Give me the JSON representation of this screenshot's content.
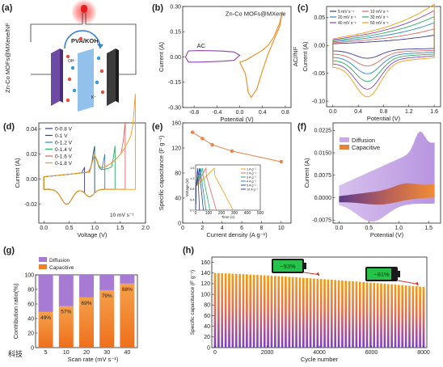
{
  "chart_data": [
    {
      "panel": "(a)",
      "type": "diagram",
      "side_label": "Zn-Co MOFs@MXene/NF",
      "electrolyte_label": "PVA/KOH",
      "ion_labels": [
        "OH⁻",
        "K⁺"
      ]
    },
    {
      "panel": "(b)",
      "type": "line",
      "xlabel": "Potential (V)",
      "ylabel": "Current (A)",
      "right_label": "AC//NF",
      "xlim": [
        -1.0,
        0.9
      ],
      "ylim": [
        -0.3,
        0.3
      ],
      "xticks": [
        "-0.8",
        "-0.4",
        "0.0",
        "0.4",
        "0.8"
      ],
      "yticks": [
        "-0.30",
        "-0.15",
        "0.00",
        "0.15",
        "0.30"
      ],
      "series": [
        {
          "name": "AC",
          "color": "#8e44ad",
          "x": [
            -0.9,
            -0.7,
            -0.5,
            -0.3,
            -0.1,
            0.0,
            -0.1,
            -0.3,
            -0.5,
            -0.7,
            -0.9,
            -0.95,
            -0.9
          ],
          "y": [
            -0.03,
            -0.03,
            -0.028,
            -0.025,
            -0.02,
            0.01,
            0.03,
            0.035,
            0.037,
            0.038,
            0.036,
            0.0,
            -0.03
          ]
        },
        {
          "name": "Zn-Co MOFs@MXene",
          "color": "#f08a1c",
          "x": [
            0.0,
            0.1,
            0.2,
            0.3,
            0.4,
            0.5,
            0.6,
            0.7,
            0.75,
            0.7,
            0.6,
            0.5,
            0.4,
            0.3,
            0.2,
            0.15,
            0.1,
            0.0
          ],
          "y": [
            -0.03,
            -0.02,
            0.0,
            0.02,
            0.04,
            0.07,
            0.12,
            0.2,
            0.27,
            0.18,
            0.1,
            0.02,
            -0.08,
            -0.19,
            -0.24,
            -0.21,
            -0.1,
            -0.03
          ]
        }
      ]
    },
    {
      "panel": "(c)",
      "type": "line",
      "xlabel": "Potential (V)",
      "ylabel": "Current (A)",
      "xlim": [
        -0.1,
        1.7
      ],
      "ylim": [
        -0.11,
        0.07
      ],
      "xticks": [
        "0.0",
        "0.4",
        "0.8",
        "1.2",
        "1.6"
      ],
      "yticks": [
        "-0.10",
        "-0.05",
        "0.00",
        "0.05"
      ],
      "series": [
        {
          "name": "5 mV s⁻¹",
          "color": "#3b3b98",
          "scale": 0.25
        },
        {
          "name": "10 mV s⁻¹",
          "color": "#e06666",
          "scale": 0.4
        },
        {
          "name": "20 mV s⁻¹",
          "color": "#2e86c1",
          "scale": 0.55
        },
        {
          "name": "30 mV s⁻¹",
          "color": "#27ae60",
          "scale": 0.7
        },
        {
          "name": "40 mV s⁻¹",
          "color": "#8e44ad",
          "scale": 0.85
        },
        {
          "name": "50 mV s⁻¹",
          "color": "#f39c12",
          "scale": 1.0
        }
      ]
    },
    {
      "panel": "(d)",
      "type": "line",
      "xlabel": "Voltage (V)",
      "ylabel": "Current (A)",
      "annotation": "10 mV s⁻¹",
      "xlim": [
        -0.1,
        2.0
      ],
      "ylim": [
        -0.035,
        0.045
      ],
      "xticks": [
        "0.0",
        "0.5",
        "1.0",
        "1.5",
        "2.0"
      ],
      "yticks": [
        "-0.02",
        "0.00",
        "0.02",
        "0.04"
      ],
      "series": [
        {
          "name": "0-0.8 V",
          "color": "#3b3b98",
          "vmax": 0.8
        },
        {
          "name": "0-1 V",
          "color": "#1a5276",
          "vmax": 1.0
        },
        {
          "name": "0-1.2 V",
          "color": "#2e86c1",
          "vmax": 1.2
        },
        {
          "name": "0-1.4 V",
          "color": "#27ae60",
          "vmax": 1.4
        },
        {
          "name": "0-1.6 V",
          "color": "#e06666",
          "vmax": 1.6
        },
        {
          "name": "0-1.8 V",
          "color": "#f39c12",
          "vmax": 1.8
        }
      ]
    },
    {
      "panel": "(e)",
      "type": "line",
      "xlabel": "Current density (A g⁻¹)",
      "ylabel": "Specific capacitance (F g⁻¹)",
      "xlim": [
        0,
        11
      ],
      "ylim": [
        0,
        160
      ],
      "xticks": [
        "0",
        "2",
        "4",
        "6",
        "8",
        "10"
      ],
      "yticks": [
        "0",
        "40",
        "80",
        "120",
        "160"
      ],
      "series": [
        {
          "name": "capacitance",
          "color": "#e8834a",
          "x": [
            1,
            2,
            3,
            5,
            10
          ],
          "y": [
            145,
            135,
            125,
            115,
            98
          ]
        }
      ],
      "inset": {
        "xlabel": "Time (s)",
        "ylabel": "Voltage (V)",
        "xticks": [
          "0",
          "100",
          "200",
          "300",
          "400",
          "500"
        ],
        "yticks": [
          "0.0",
          "0.4",
          "0.8",
          "1.2",
          "1.6"
        ],
        "legend": [
          {
            "name": "1 A g⁻¹",
            "color": "#f39c12"
          },
          {
            "name": "2 A g⁻¹",
            "color": "#e06666"
          },
          {
            "name": "3 A g⁻¹",
            "color": "#27ae60"
          },
          {
            "name": "4 A g⁻¹",
            "color": "#2e86c1"
          },
          {
            "name": "5 A g⁻¹",
            "color": "#1a5276"
          },
          {
            "name": "10 A g⁻¹",
            "color": "#3b3b98"
          }
        ]
      }
    },
    {
      "panel": "(f)",
      "type": "area",
      "xlabel": "Potential (V)",
      "ylabel": "Current (A)",
      "xlim": [
        -0.1,
        1.7
      ],
      "ylim": [
        -0.0085,
        0.025
      ],
      "xticks": [
        "0.0",
        "0.5",
        "1.0",
        "1.5"
      ],
      "yticks": [
        "-0.0075",
        "0.0000",
        "0.0075",
        "0.0150",
        "0.0225"
      ],
      "legend": [
        {
          "name": "Diffusion",
          "color": "#c9a9e6"
        },
        {
          "name": "Capacitive",
          "color": "#e6833a"
        }
      ]
    },
    {
      "panel": "(g)",
      "type": "bar",
      "xlabel": "Scan rate (mV s⁻¹)",
      "ylabel": "Contribution ratio(%)",
      "categories": [
        "5",
        "10",
        "20",
        "30",
        "40"
      ],
      "ylim": [
        0,
        100
      ],
      "yticks": [
        "0",
        "20",
        "40",
        "60",
        "80",
        "100"
      ],
      "series": [
        {
          "name": "Capacitive",
          "color": "#f07f25",
          "values": [
            49,
            57,
            69,
            79,
            88
          ]
        },
        {
          "name": "Diffusion",
          "color": "#a77bd4",
          "values": [
            51,
            43,
            31,
            21,
            12
          ]
        }
      ],
      "data_labels": [
        "49%",
        "57%",
        "69%",
        "79%",
        "88%"
      ],
      "watermark": "科技"
    },
    {
      "panel": "(h)",
      "type": "bar",
      "xlabel": "Cycle number",
      "ylabel": "Specific capacitance (F g⁻¹)",
      "xlim": [
        0,
        8000
      ],
      "ylim": [
        0,
        170
      ],
      "xticks": [
        "0",
        "2000",
        "4000",
        "6000",
        "8000"
      ],
      "yticks": [
        "0",
        "20",
        "40",
        "60",
        "80",
        "100",
        "120",
        "140",
        "160"
      ],
      "capacitance_start": 140,
      "capacitance_end": 114,
      "battery_labels": [
        "~93%",
        "~81%"
      ]
    }
  ]
}
